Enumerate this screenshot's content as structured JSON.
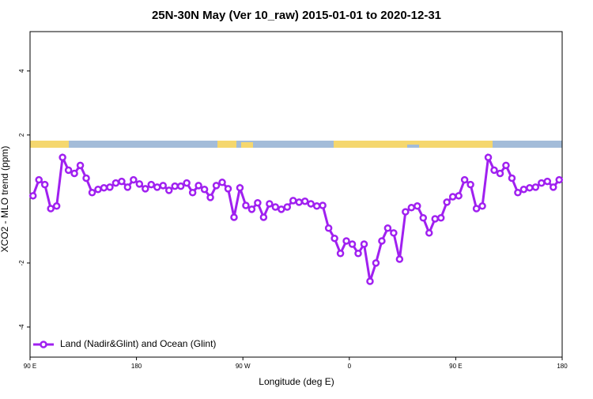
{
  "chart_data": {
    "type": "line",
    "title": "25N-30N May (Ver 10_raw)   2015-01-01 to 2020-12-31",
    "x_label": "Longitude (deg E)",
    "y_label": "XCO2 - MLO trend (ppm)",
    "x": [
      92.5,
      97.5,
      102.5,
      107.5,
      112.5,
      117.5,
      122.5,
      127.5,
      132.5,
      137.5,
      142.5,
      147.5,
      152.5,
      157.5,
      162.5,
      167.5,
      172.5,
      177.5,
      182.5,
      187.5,
      192.5,
      197.5,
      202.5,
      207.5,
      212.5,
      217.5,
      222.5,
      227.5,
      232.5,
      237.5,
      242.5,
      247.5,
      252.5,
      257.5,
      262.5,
      267.5,
      272.5,
      277.5,
      282.5,
      287.5,
      292.5,
      297.5,
      302.5,
      307.5,
      312.5,
      317.5,
      322.5,
      327.5,
      332.5,
      337.5,
      342.5,
      347.5,
      352.5,
      357.5,
      362.5,
      367.5,
      372.5,
      377.5,
      382.5,
      387.5,
      392.5,
      397.5,
      402.5,
      407.5,
      412.5,
      417.5,
      422.5,
      427.5,
      432.5,
      437.5,
      442.5,
      447.5,
      452.5,
      457.5,
      462.5,
      467.5,
      472.5,
      477.5,
      482.5,
      487.5,
      492.5,
      497.5,
      502.5,
      507.5,
      512.5,
      517.5,
      522.5,
      527.5,
      532.5,
      537.5
    ],
    "series": [
      {
        "name": "Land (Nadir&Glint) and Ocean (Glint)",
        "color": "#a020f0",
        "values": [
          0.1,
          0.6,
          0.45,
          -0.3,
          -0.22,
          1.3,
          0.9,
          0.8,
          1.05,
          0.65,
          0.2,
          0.3,
          0.35,
          0.37,
          0.5,
          0.55,
          0.37,
          0.6,
          0.47,
          0.32,
          0.45,
          0.37,
          0.42,
          0.27,
          0.4,
          0.4,
          0.5,
          0.2,
          0.42,
          0.3,
          0.05,
          0.42,
          0.52,
          0.32,
          -0.57,
          0.35,
          -0.2,
          -0.32,
          -0.12,
          -0.57,
          -0.15,
          -0.25,
          -0.32,
          -0.25,
          -0.05,
          -0.1,
          -0.07,
          -0.15,
          -0.22,
          -0.2,
          -0.91,
          -1.23,
          -1.7,
          -1.31,
          -1.41,
          -1.7,
          -1.41,
          -2.57,
          -2.0,
          -1.31,
          -0.91,
          -1.06,
          -1.88,
          -0.4,
          -0.27,
          -0.22,
          -0.59,
          -1.06,
          -0.62,
          -0.59,
          -0.1,
          0.07,
          0.1,
          0.6,
          0.45,
          -0.3,
          -0.22,
          1.3,
          0.9,
          0.8,
          1.05,
          0.65,
          0.2,
          0.3,
          0.35,
          0.37,
          0.5,
          0.55,
          0.37,
          0.6
        ]
      }
    ],
    "xlim": [
      90,
      540
    ],
    "xticks": [
      {
        "value": 90,
        "label": "90 E"
      },
      180,
      {
        "value": 270,
        "label": "90 W"
      },
      {
        "value": 360,
        "label": "0"
      },
      {
        "value": 450,
        "label": "90 E"
      },
      {
        "value": 540,
        "label": "180"
      }
    ],
    "ylim": [
      -4.94,
      5.23
    ],
    "yticks": [
      -4,
      -2,
      2,
      4
    ],
    "legend": "bottom-left"
  }
}
